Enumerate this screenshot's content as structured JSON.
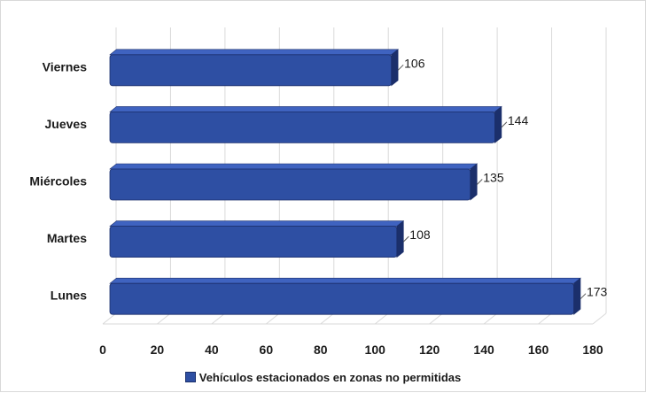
{
  "chart_data": {
    "type": "bar",
    "orientation": "horizontal",
    "categories": [
      "Lunes",
      "Martes",
      "Miércoles",
      "Jueves",
      "Viernes"
    ],
    "series": [
      {
        "name": "Vehículos estacionados en zonas no permitidas",
        "values": [
          173,
          108,
          135,
          144,
          106
        ]
      }
    ],
    "xlim": [
      0,
      180
    ],
    "x_ticks": [
      0,
      20,
      40,
      60,
      80,
      100,
      120,
      140,
      160,
      180
    ],
    "grid": true,
    "legend_position": "bottom",
    "colors": {
      "bar": "#2e4fa3",
      "bar_dark": "#1b2f6b",
      "bar_top": "#3f63c0"
    }
  }
}
